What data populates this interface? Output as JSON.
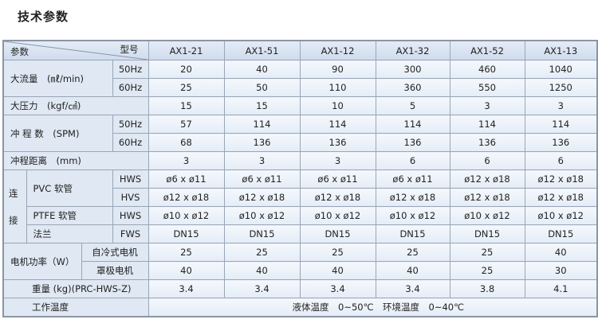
{
  "title": "技术参数",
  "header": {
    "param": "参数",
    "model": "型号",
    "models": [
      "AX1-21",
      "AX1-51",
      "AX1-12",
      "AX1-32",
      "AX1-52",
      "AX1-13"
    ]
  },
  "rows": {
    "flow": {
      "label": "大流量　(㎖/min)",
      "sub": [
        {
          "hz": "50Hz",
          "values": [
            "20",
            "40",
            "90",
            "300",
            "460",
            "1040"
          ]
        },
        {
          "hz": "60Hz",
          "values": [
            "25",
            "50",
            "110",
            "360",
            "550",
            "1250"
          ]
        }
      ]
    },
    "pressure": {
      "label": "大压力　(kgf/㎠)",
      "values": [
        "15",
        "15",
        "10",
        "5",
        "3",
        "3"
      ]
    },
    "spm": {
      "label": "冲 程 数　(SPM)",
      "sub": [
        {
          "hz": "50Hz",
          "values": [
            "57",
            "114",
            "114",
            "114",
            "114",
            "114"
          ]
        },
        {
          "hz": "60Hz",
          "values": [
            "68",
            "136",
            "136",
            "136",
            "136",
            "136"
          ]
        }
      ]
    },
    "stroke": {
      "label": "冲程距离　(mm)",
      "values": [
        "3",
        "3",
        "3",
        "6",
        "6",
        "6"
      ]
    },
    "connection": {
      "label": "连接",
      "pvc": "PVC 软管",
      "ptfe": "PTFE 软管",
      "flange": "法兰",
      "sub": [
        {
          "type": "HWS",
          "values": [
            "ø6 x ø11",
            "ø6 x ø11",
            "ø6 x ø11",
            "ø6 x ø11",
            "ø12 x ø18",
            "ø12 x ø18"
          ]
        },
        {
          "type": "HVS",
          "values": [
            "ø12 x ø18",
            "ø12 x ø18",
            "ø12 x ø18",
            "ø12 x ø18",
            "ø12 x ø18",
            "ø12 x ø18"
          ]
        },
        {
          "type": "HWS",
          "values": [
            "ø10 x ø12",
            "ø10 x ø12",
            "ø10 x ø12",
            "ø10 x ø12",
            "ø10 x ø12",
            "ø10 x ø12"
          ]
        },
        {
          "type": "FWS",
          "values": [
            "DN15",
            "DN15",
            "DN15",
            "DN15",
            "DN15",
            "DN15"
          ]
        }
      ]
    },
    "motor": {
      "label": "电机功率（W）",
      "sub": [
        {
          "type": "自冷式电机",
          "values": [
            "25",
            "25",
            "25",
            "25",
            "25",
            "40"
          ]
        },
        {
          "type": "罩极电机",
          "values": [
            "40",
            "40",
            "40",
            "40",
            "25",
            "30"
          ]
        }
      ]
    },
    "weight": {
      "label": "重量 (kg)(PRC-HWS-Z)",
      "values": [
        "3.4",
        "3.4",
        "3.4",
        "3.4",
        "3.8",
        "4.1"
      ]
    },
    "temperature": {
      "label": "工作温度",
      "value": "液体温度　0~50℃　环境温度　0~40℃"
    }
  }
}
